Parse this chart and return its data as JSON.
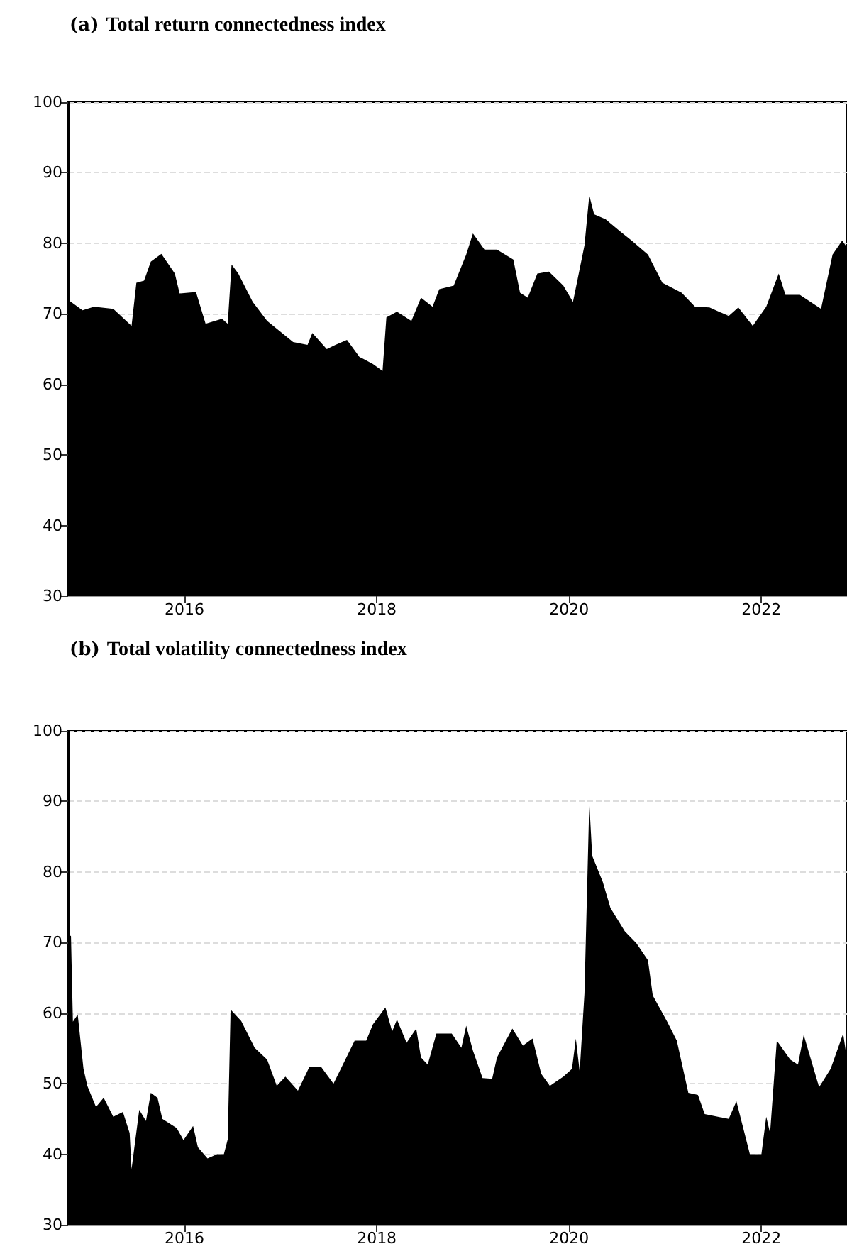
{
  "chart_data": [
    {
      "type": "area",
      "title": "(a) Total return connectedness index",
      "xlim": [
        2014.79,
        2022.89
      ],
      "xticks": [
        2016,
        2018,
        2020,
        2022
      ],
      "ylim": [
        30,
        100
      ],
      "yticks": [
        30,
        40,
        50,
        60,
        70,
        80,
        90,
        100
      ],
      "grid": "y",
      "series": [
        {
          "color": "#000000",
          "x": [
            2014.79,
            2014.94,
            2015.06,
            2015.26,
            2015.45,
            2015.5,
            2015.58,
            2015.65,
            2015.76,
            2015.9,
            2015.95,
            2016.12,
            2016.22,
            2016.39,
            2016.45,
            2016.49,
            2016.56,
            2016.71,
            2016.86,
            2017.13,
            2017.28,
            2017.33,
            2017.48,
            2017.57,
            2017.69,
            2017.82,
            2017.96,
            2018.06,
            2018.1,
            2018.21,
            2018.36,
            2018.46,
            2018.58,
            2018.65,
            2018.8,
            2018.93,
            2019.0,
            2019.12,
            2019.25,
            2019.42,
            2019.49,
            2019.57,
            2019.67,
            2019.79,
            2019.94,
            2020.04,
            2020.09,
            2020.16,
            2020.21,
            2020.26,
            2020.38,
            2020.53,
            2020.65,
            2020.82,
            2020.97,
            2021.17,
            2021.31,
            2021.46,
            2021.66,
            2021.76,
            2021.91,
            2022.05,
            2022.18,
            2022.25,
            2022.4,
            2022.62,
            2022.74,
            2022.84,
            2022.89
          ],
          "values": [
            72.0,
            70.5,
            71.0,
            70.7,
            68.3,
            74.4,
            74.7,
            77.4,
            78.5,
            75.7,
            72.9,
            73.1,
            68.6,
            69.3,
            68.6,
            77.0,
            75.7,
            71.7,
            69.0,
            66.0,
            65.6,
            67.3,
            65.0,
            65.6,
            66.3,
            63.9,
            62.9,
            61.9,
            69.5,
            70.3,
            69.0,
            72.3,
            71.0,
            73.5,
            74.0,
            78.4,
            81.4,
            79.1,
            79.1,
            77.7,
            73.0,
            72.3,
            75.7,
            76.0,
            74.0,
            71.7,
            75.0,
            79.7,
            86.8,
            84.1,
            83.4,
            81.7,
            80.4,
            78.4,
            74.4,
            73.0,
            71.0,
            70.9,
            69.7,
            70.9,
            68.3,
            71.0,
            75.7,
            72.7,
            72.7,
            70.7,
            78.4,
            80.4,
            79.4
          ]
        }
      ]
    },
    {
      "type": "area",
      "title": "(b) Total volatility connectedness index",
      "xlim": [
        2014.79,
        2022.89
      ],
      "xticks": [
        2016,
        2018,
        2020,
        2022
      ],
      "ylim": [
        30,
        100
      ],
      "yticks": [
        30,
        40,
        50,
        60,
        70,
        80,
        90,
        100
      ],
      "grid": "y",
      "series": [
        {
          "color": "#000000",
          "x": [
            2014.79,
            2014.82,
            2014.84,
            2014.89,
            2014.95,
            2014.99,
            2015.08,
            2015.16,
            2015.26,
            2015.36,
            2015.43,
            2015.45,
            2015.53,
            2015.6,
            2015.65,
            2015.72,
            2015.77,
            2015.92,
            2015.99,
            2016.09,
            2016.14,
            2016.24,
            2016.34,
            2016.41,
            2016.45,
            2016.48,
            2016.59,
            2016.73,
            2016.86,
            2016.96,
            2017.05,
            2017.18,
            2017.3,
            2017.42,
            2017.55,
            2017.77,
            2017.89,
            2017.96,
            2018.09,
            2018.16,
            2018.21,
            2018.31,
            2018.41,
            2018.46,
            2018.53,
            2018.62,
            2018.78,
            2018.88,
            2018.93,
            2019.0,
            2019.1,
            2019.2,
            2019.25,
            2019.41,
            2019.52,
            2019.62,
            2019.71,
            2019.8,
            2019.94,
            2020.03,
            2020.07,
            2020.11,
            2020.16,
            2020.21,
            2020.24,
            2020.35,
            2020.43,
            2020.58,
            2020.7,
            2020.82,
            2020.87,
            2021.02,
            2021.12,
            2021.24,
            2021.34,
            2021.41,
            2021.66,
            2021.74,
            2021.88,
            2022.0,
            2022.05,
            2022.09,
            2022.16,
            2022.3,
            2022.38,
            2022.44,
            2022.6,
            2022.72,
            2022.85,
            2022.89
          ],
          "values": [
            71.2,
            70.9,
            58.8,
            59.8,
            52.1,
            49.7,
            46.7,
            48.0,
            45.3,
            46.0,
            43.0,
            37.9,
            46.3,
            44.7,
            48.7,
            48.0,
            45.0,
            43.7,
            42.0,
            44.0,
            41.0,
            39.4,
            40.0,
            40.0,
            42.1,
            60.5,
            58.9,
            55.1,
            53.4,
            49.7,
            51.0,
            49.0,
            52.4,
            52.4,
            50.0,
            56.1,
            56.1,
            58.4,
            60.8,
            57.4,
            59.1,
            55.8,
            57.8,
            53.7,
            52.7,
            57.1,
            57.1,
            55.1,
            58.2,
            54.7,
            50.8,
            50.7,
            53.7,
            57.8,
            55.4,
            56.4,
            51.4,
            49.7,
            51.0,
            52.1,
            56.4,
            51.7,
            62.8,
            89.9,
            82.3,
            78.6,
            74.9,
            71.6,
            69.9,
            67.5,
            62.5,
            58.8,
            56.1,
            48.7,
            48.4,
            45.7,
            45.0,
            47.5,
            40.0,
            40.0,
            45.3,
            43.0,
            56.1,
            53.4,
            52.7,
            56.9,
            49.5,
            52.1,
            57.1,
            53.4
          ]
        }
      ]
    }
  ]
}
